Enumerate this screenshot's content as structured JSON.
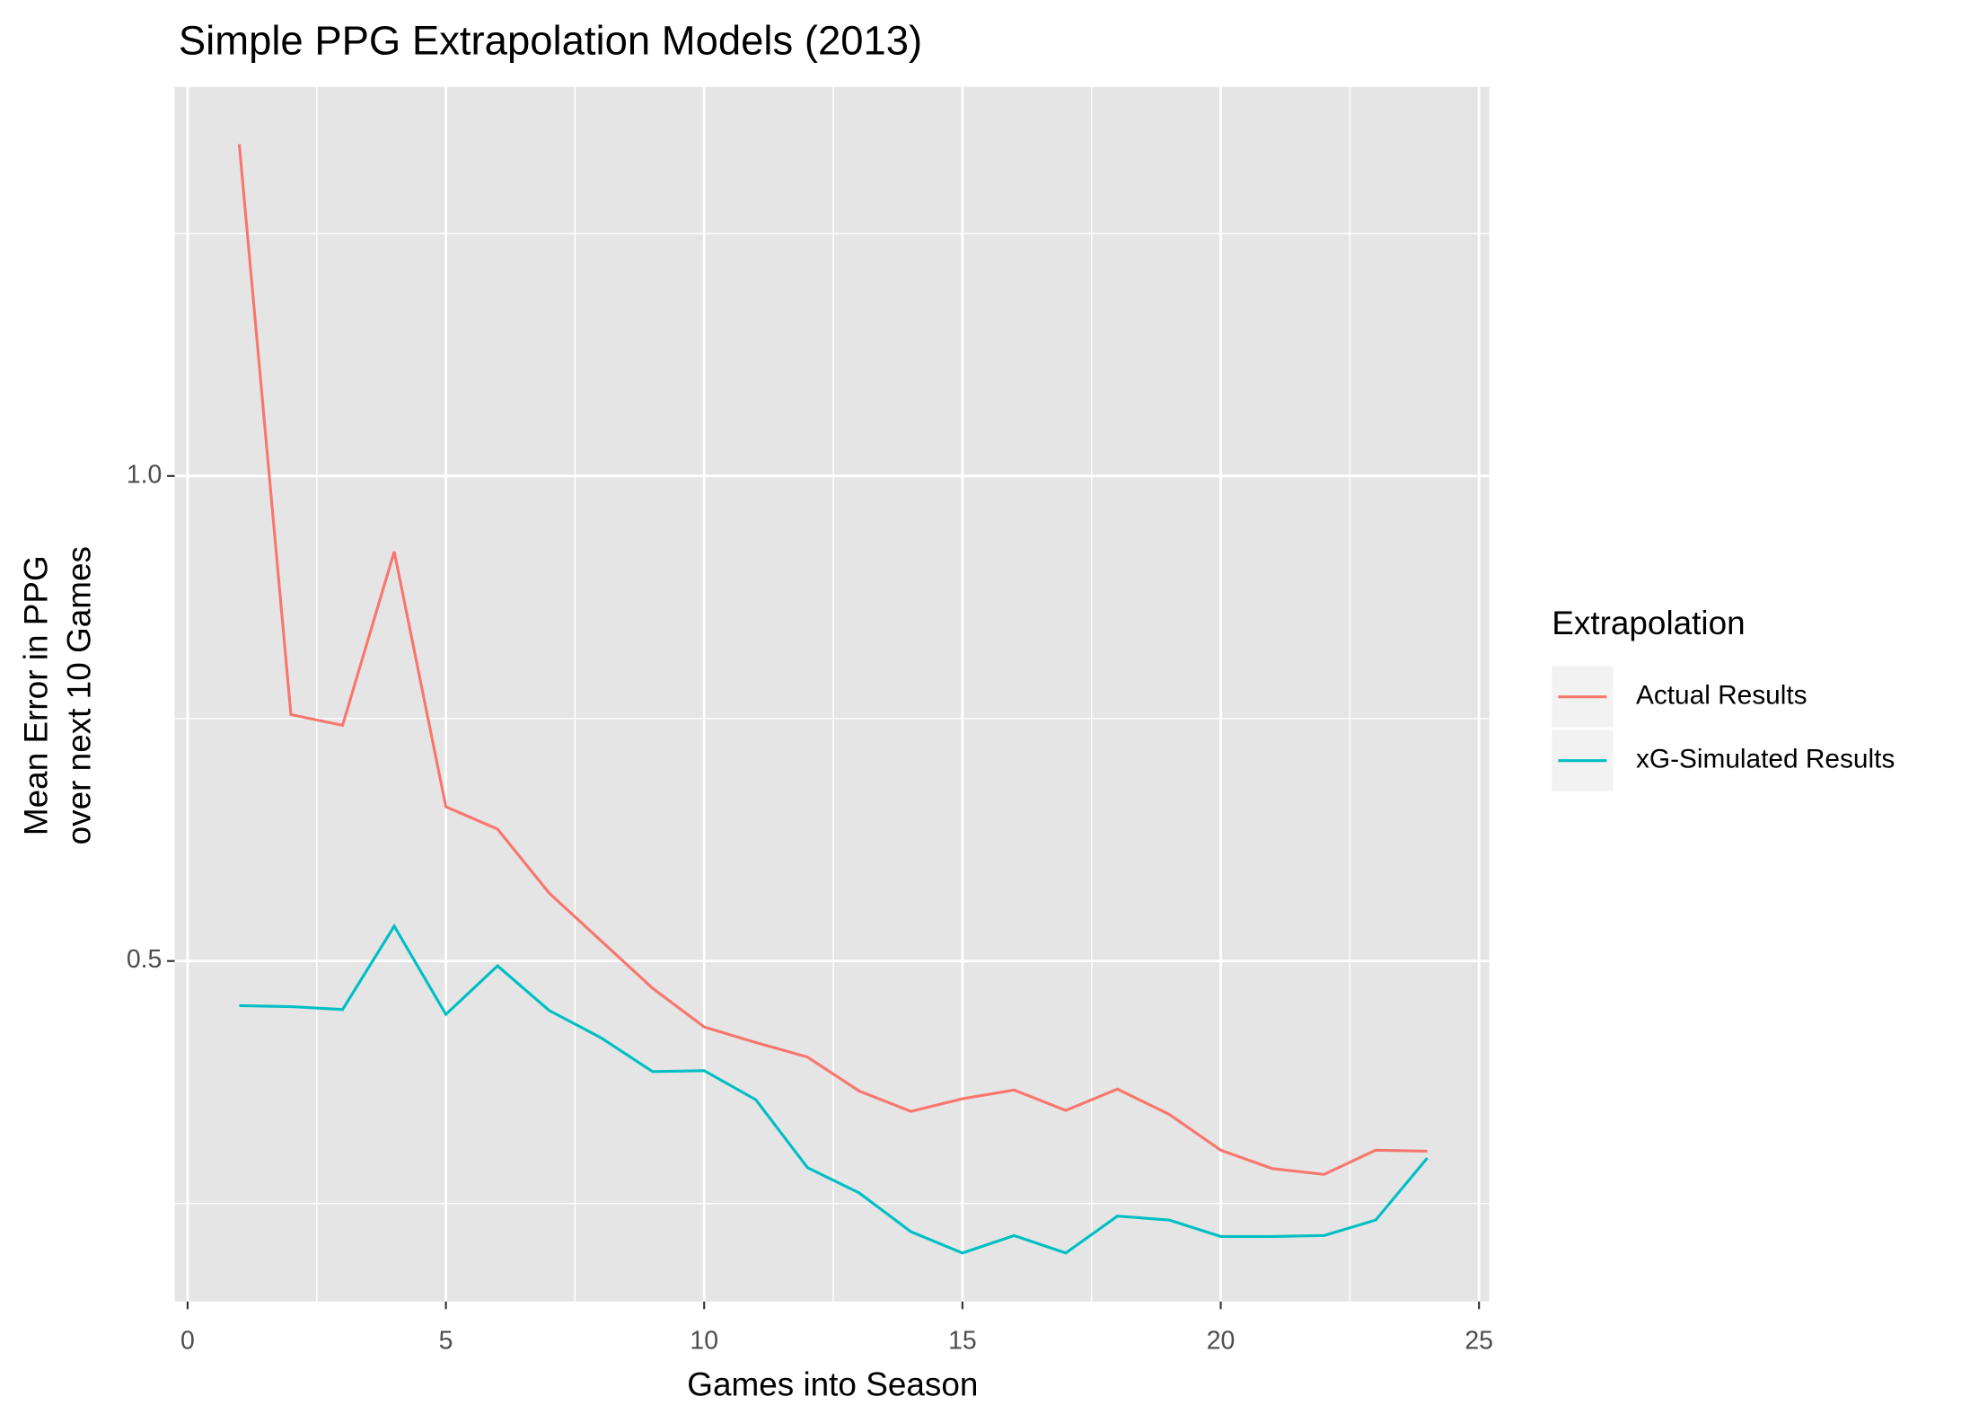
{
  "chart_data": {
    "type": "line",
    "title": "Simple PPG Extrapolation Models (2013)",
    "x_label": "Games into Season",
    "y_label": [
      "Mean Error in PPG",
      "over next 10 Games"
    ],
    "x": [
      1,
      2,
      3,
      4,
      5,
      6,
      7,
      8,
      9,
      10,
      11,
      12,
      13,
      14,
      15,
      16,
      17,
      18,
      19,
      20,
      21,
      22,
      23,
      24
    ],
    "series": [
      {
        "name": "Actual Results",
        "color": "#F8766D",
        "values": [
          1.342,
          0.754,
          0.743,
          0.922,
          0.659,
          0.636,
          0.57,
          0.521,
          0.472,
          0.432,
          0.416,
          0.401,
          0.366,
          0.345,
          0.358,
          0.367,
          0.346,
          0.368,
          0.342,
          0.305,
          0.286,
          0.28,
          0.305,
          0.304
        ]
      },
      {
        "name": "xG-Simulated Results",
        "color": "#00BFC4",
        "values": [
          0.454,
          0.453,
          0.45,
          0.536,
          0.445,
          0.495,
          0.449,
          0.421,
          0.386,
          0.387,
          0.357,
          0.287,
          0.261,
          0.221,
          0.199,
          0.217,
          0.199,
          0.237,
          0.233,
          0.216,
          0.216,
          0.217,
          0.233,
          0.297
        ]
      }
    ],
    "legend_title": "Extrapolation",
    "legend": "right",
    "xlim": [
      -0.25,
      25.2
    ],
    "xticks": [
      0,
      5,
      10,
      15,
      20,
      25
    ],
    "x_minor_ticks": [
      2.5,
      7.5,
      12.5,
      17.5,
      22.5
    ],
    "ylim": [
      0.149,
      1.401
    ],
    "yticks": [
      {
        "value": 0.5,
        "label": "0.5"
      },
      {
        "value": 1.0,
        "label": "1.0"
      }
    ],
    "y_minor_ticks": [
      0.25,
      0.75,
      1.25
    ],
    "grid": true
  }
}
